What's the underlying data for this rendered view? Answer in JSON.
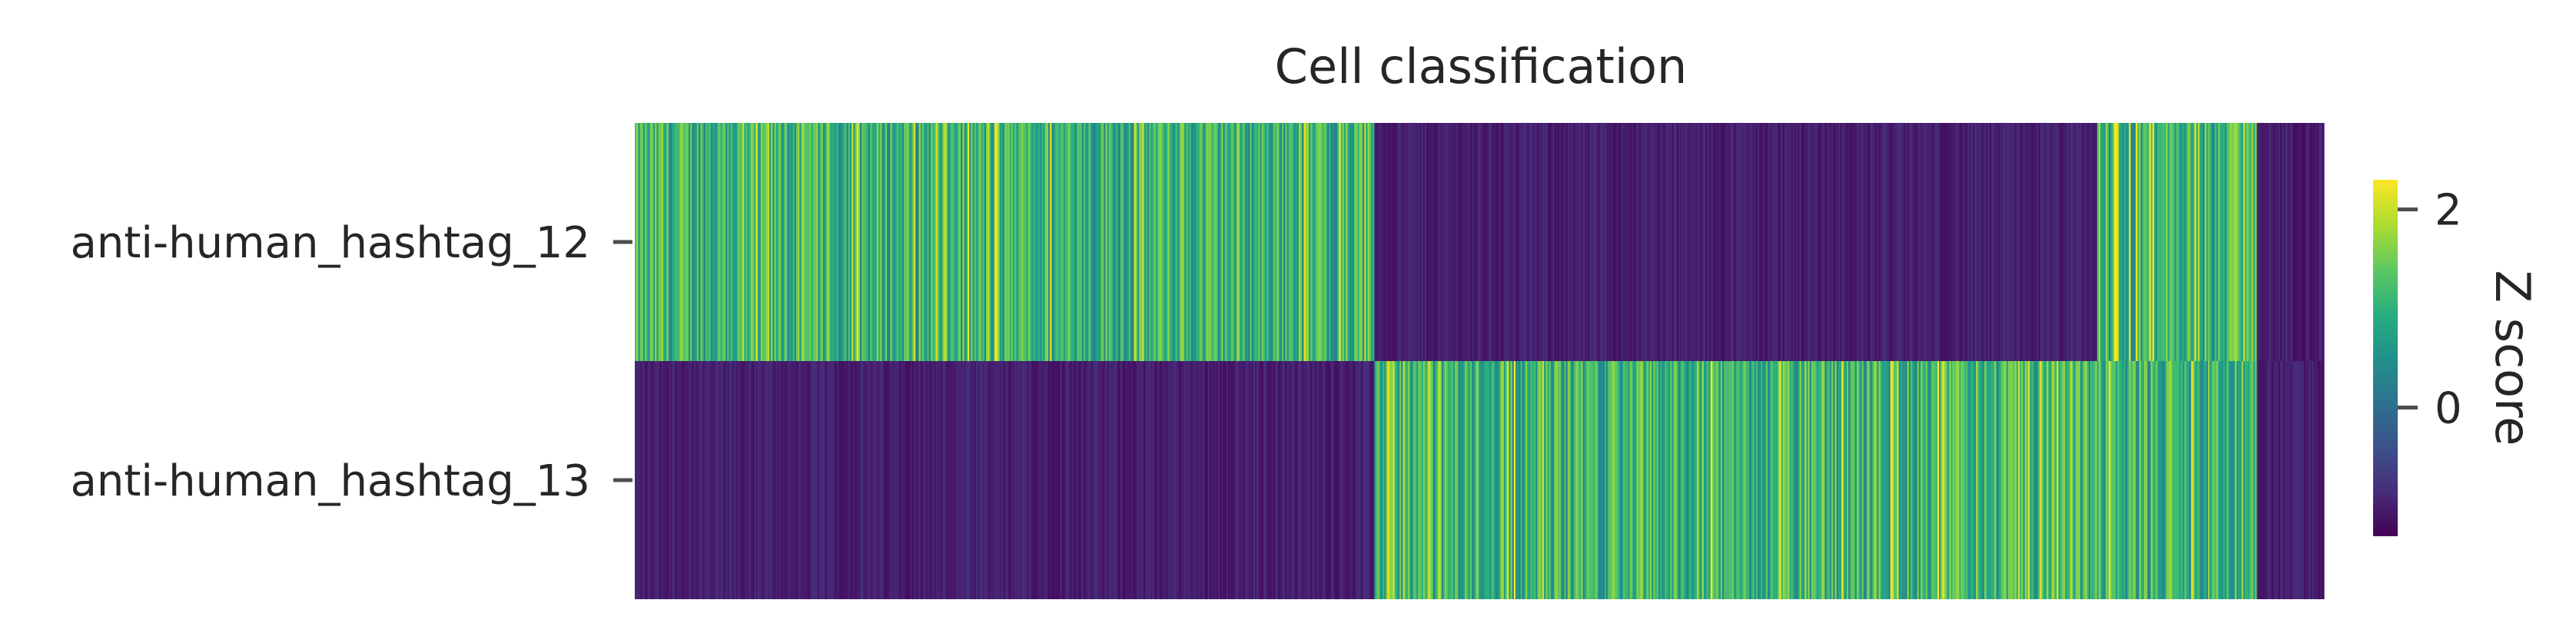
{
  "chart_data": {
    "type": "heatmap",
    "title": "Cell classification",
    "xlabel": "",
    "ylabel": "",
    "rows": [
      "anti-human_hashtag_12",
      "anti-human_hashtag_13"
    ],
    "row_ticks_shown": true,
    "column_ticks_shown": false,
    "column_groups": [
      {
        "cells": 440,
        "row_levels": [
          "high",
          "low"
        ]
      },
      {
        "cells": 430,
        "row_levels": [
          "low",
          "high"
        ]
      },
      {
        "cells": 95,
        "row_levels": [
          "high",
          "high"
        ]
      },
      {
        "cells": 40,
        "row_levels": [
          "low",
          "low"
        ]
      }
    ],
    "row_mean_z": {
      "high": 1.0,
      "low": -1.0
    },
    "colormap": "viridis",
    "colorbar": {
      "label": "Z score",
      "min": -1.3,
      "max": 2.3,
      "ticks": [
        0,
        2
      ],
      "tick_labels": [
        "0",
        "2"
      ]
    },
    "grid": false,
    "legend": "colorbar-right"
  },
  "colors": {
    "viridis_stops": [
      "#440154",
      "#472d7b",
      "#3b528b",
      "#2c728e",
      "#21918c",
      "#28ae80",
      "#5ec962",
      "#addc30",
      "#fde725"
    ]
  }
}
